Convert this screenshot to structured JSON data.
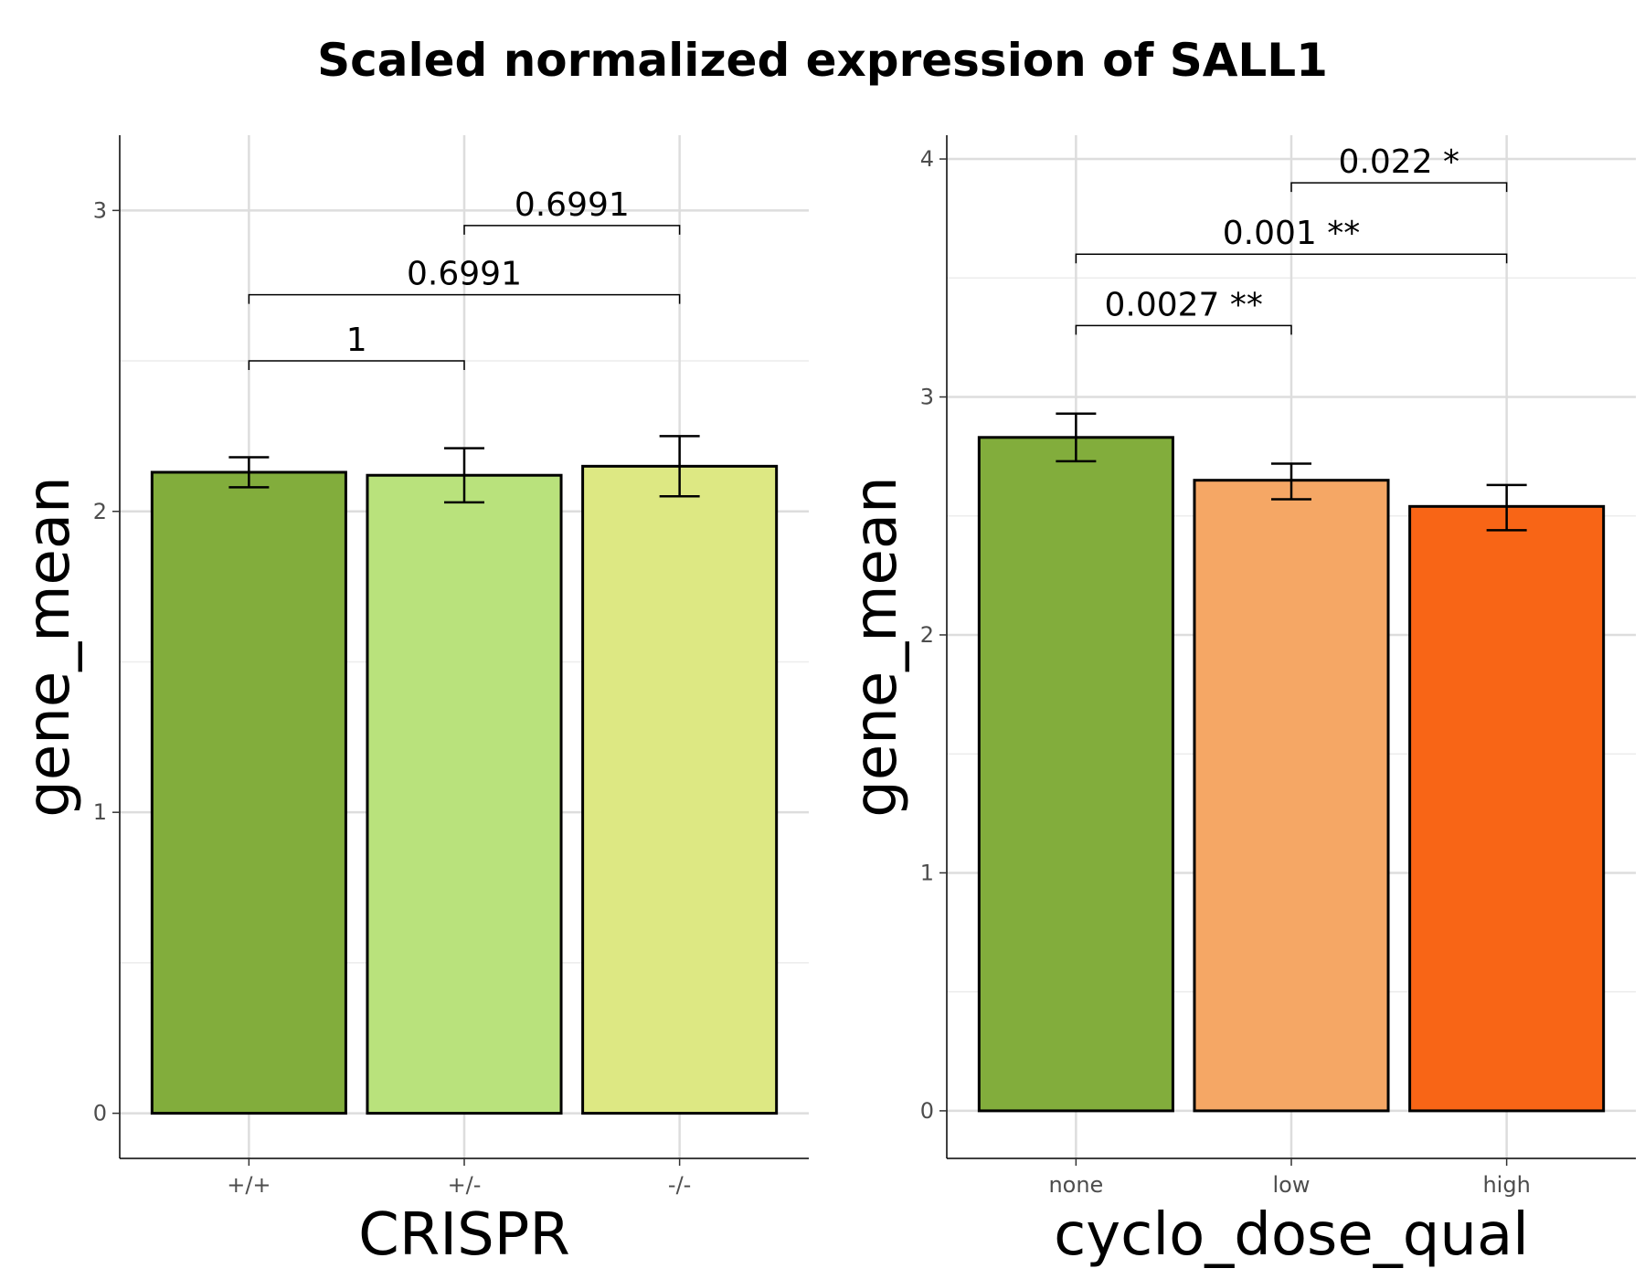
{
  "figure": {
    "title": "Scaled normalized expression of SALL1"
  },
  "chart_data": [
    {
      "type": "bar",
      "xlabel": "CRISPR",
      "ylabel": "gene_mean",
      "ylim": [
        -0.15,
        3.25
      ],
      "yticks": [
        0,
        1,
        2,
        3
      ],
      "grid": true,
      "categories": [
        "+/+",
        "+/-",
        "-/-"
      ],
      "values": [
        2.13,
        2.12,
        2.15
      ],
      "errors": [
        [
          2.08,
          2.18
        ],
        [
          2.03,
          2.21
        ],
        [
          2.05,
          2.25
        ]
      ],
      "colors": [
        "#82ad3c",
        "#b9e27c",
        "#dde883"
      ],
      "comparisons": [
        {
          "from": 0,
          "to": 1,
          "label": "1",
          "y": 2.5
        },
        {
          "from": 0,
          "to": 2,
          "label": "0.6991",
          "y": 2.72
        },
        {
          "from": 1,
          "to": 2,
          "label": "0.6991",
          "y": 2.95
        }
      ]
    },
    {
      "type": "bar",
      "xlabel": "cyclo_dose_qual",
      "ylabel": "gene_mean",
      "ylim": [
        -0.2,
        4.1
      ],
      "yticks": [
        0,
        1,
        2,
        3,
        4
      ],
      "grid": true,
      "categories": [
        "none",
        "low",
        "high"
      ],
      "values": [
        2.83,
        2.65,
        2.54
      ],
      "errors": [
        [
          2.73,
          2.93
        ],
        [
          2.57,
          2.72
        ],
        [
          2.44,
          2.63
        ]
      ],
      "colors": [
        "#82ad3c",
        "#f5a765",
        "#f86516"
      ],
      "comparisons": [
        {
          "from": 0,
          "to": 1,
          "label": "0.0027 **",
          "y": 3.3
        },
        {
          "from": 0,
          "to": 2,
          "label": "0.001 **",
          "y": 3.6
        },
        {
          "from": 1,
          "to": 2,
          "label": "0.022 *",
          "y": 3.9
        }
      ]
    }
  ]
}
